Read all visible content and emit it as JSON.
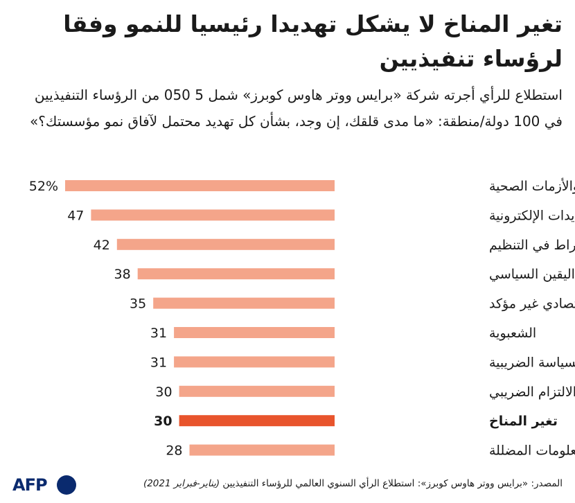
{
  "header": {
    "title": "تغير المناخ لا يشكل تهديدا رئيسيا للنمو وفقا لرؤساء تنفيذيين",
    "subtitle": "استطلاع للرأي أجرته شركة «برايس ووتر هاوس كوبرز» شمل 5 050 من الرؤساء التنفيذيين في 100 دولة/منطقة: «ما مدى قلقك، إن وجد، بشأن كل تهديد محتمل لآفاق نمو مؤسستك؟»"
  },
  "chart_data": {
    "type": "bar",
    "orientation": "horizontal",
    "categories": [
      "الأوبئة والأزمات الصحية",
      "التهديدات الإلكترونية",
      "الإفراط في التنظيم",
      "عدم اليقين السياسي",
      "نمو اقتصادي غير مؤكد",
      "الشعبوية",
      "عدم اليقين في السياسة الضريبية",
      "تعزيز الالتزام الضريبي",
      "تغير المناخ",
      "المعلومات المضللة"
    ],
    "values": [
      52,
      47,
      42,
      38,
      35,
      31,
      31,
      30,
      30,
      28
    ],
    "value_labels": [
      "52%",
      "47",
      "42",
      "38",
      "35",
      "31",
      "31",
      "30",
      "30",
      "28"
    ],
    "highlight_index": 8,
    "colors": {
      "bar": "#f4a58a",
      "highlight": "#e8542c"
    },
    "xlim": [
      0,
      52
    ],
    "grid": false,
    "legend": "none"
  },
  "footer": {
    "source": "المصدر: «برايس ووتر هاوس كوبرز»: استطلاع الرأي السنوي العالمي للرؤساء التنفيذيين",
    "period": "(يناير-فبراير 2021)",
    "logo": "AFP"
  }
}
